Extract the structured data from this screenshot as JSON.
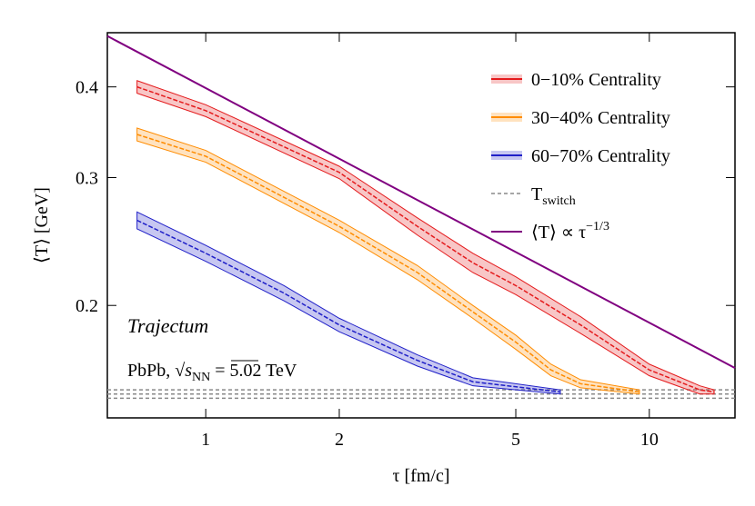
{
  "chart_data": {
    "type": "line",
    "xlabel": "τ [fm/c]",
    "ylabel": "⟨T⟩ [GeV]",
    "xscale": "log",
    "yscale": "log",
    "xlim": [
      0.6,
      15.6
    ],
    "ylim": [
      0.14,
      0.475
    ],
    "xticks": [
      1,
      2,
      5,
      10
    ],
    "yticks": [
      0.2,
      0.3,
      0.4
    ],
    "legend": "upper right",
    "annotation": "Trajectum",
    "system": {
      "prefix": "PbPb, √",
      "s": "s",
      "sub": "NN",
      "suffix": " = 5.02 TeV"
    },
    "series": [
      {
        "name": "0−10% Centrality",
        "color": "#e41a1c",
        "x": [
          0.7,
          1,
          2,
          3,
          4,
          5,
          7,
          10,
          13,
          14
        ],
        "values": [
          0.4,
          0.371,
          0.305,
          0.257,
          0.229,
          0.213,
          0.188,
          0.163,
          0.153,
          0.152
        ],
        "lower": [
          0.392,
          0.364,
          0.299,
          0.25,
          0.222,
          0.207,
          0.183,
          0.16,
          0.151,
          0.151
        ],
        "upper": [
          0.408,
          0.378,
          0.311,
          0.264,
          0.236,
          0.219,
          0.193,
          0.166,
          0.155,
          0.153
        ]
      },
      {
        "name": "30−40% Centrality",
        "color": "#ff8c00",
        "x": [
          0.7,
          1,
          2,
          3,
          4,
          5,
          6,
          7,
          9.5
        ],
        "values": [
          0.344,
          0.321,
          0.257,
          0.222,
          0.196,
          0.178,
          0.163,
          0.156,
          0.152
        ],
        "lower": [
          0.337,
          0.315,
          0.252,
          0.217,
          0.192,
          0.174,
          0.16,
          0.154,
          0.151
        ],
        "upper": [
          0.351,
          0.327,
          0.262,
          0.227,
          0.2,
          0.182,
          0.166,
          0.158,
          0.153
        ]
      },
      {
        "name": "60−70% Centrality",
        "color": "#1f1fc8",
        "x": [
          0.7,
          1,
          1.5,
          2,
          3,
          4,
          6.3
        ],
        "values": [
          0.262,
          0.236,
          0.208,
          0.188,
          0.168,
          0.157,
          0.152
        ],
        "lower": [
          0.255,
          0.23,
          0.203,
          0.184,
          0.165,
          0.155,
          0.151
        ],
        "upper": [
          0.269,
          0.242,
          0.213,
          0.192,
          0.171,
          0.159,
          0.153
        ]
      }
    ],
    "reference_lines": {
      "name": "T",
      "name_sub": "switch",
      "color": "#888888",
      "values": [
        0.153,
        0.151,
        0.149
      ]
    },
    "power_law": {
      "name": "⟨T⟩ ∝ τ",
      "name_sup": "−1/3",
      "color": "#800080",
      "x": [
        0.6,
        15.6
      ],
      "values": [
        0.47,
        0.164
      ]
    }
  }
}
